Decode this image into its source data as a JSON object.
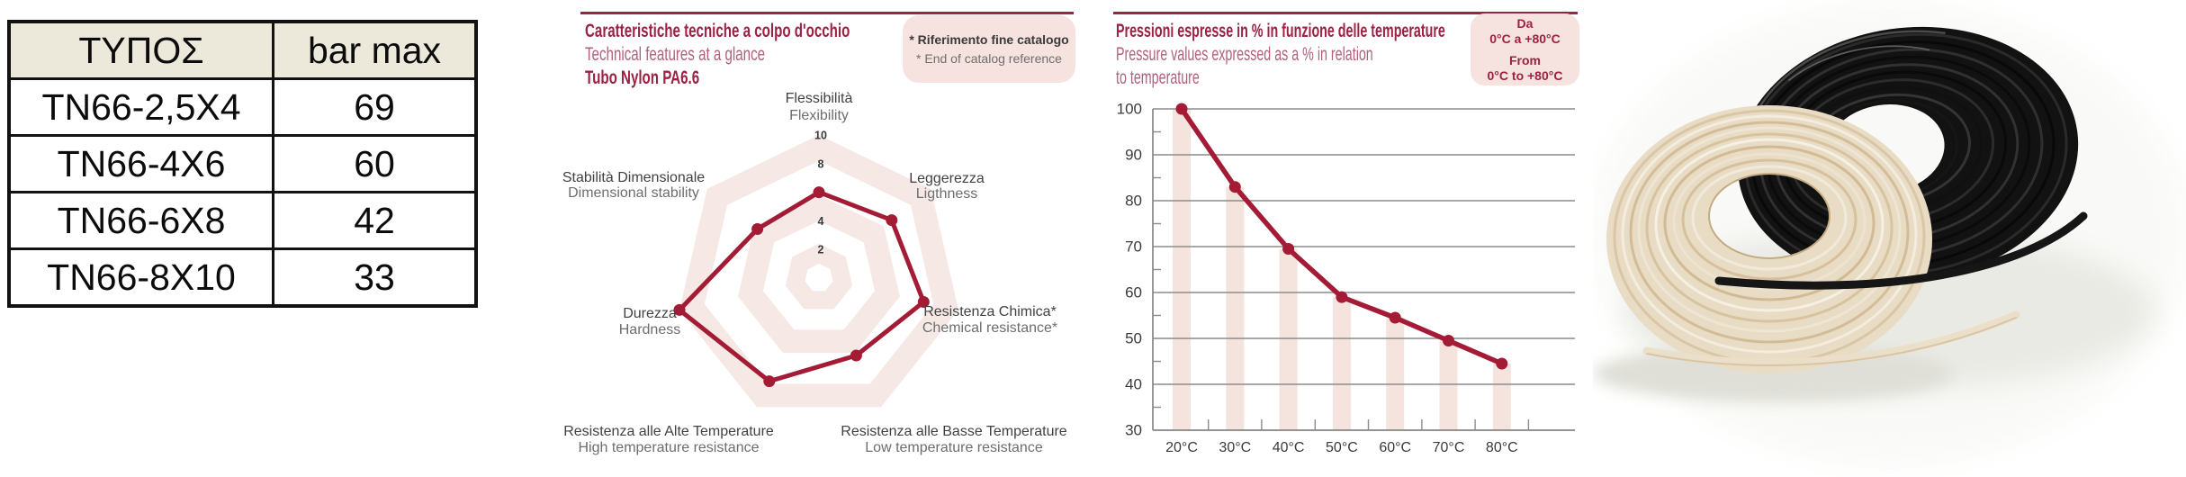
{
  "table": {
    "headers": [
      "ΤΥΠΟΣ",
      "bar max"
    ],
    "rows": [
      [
        "TN66-2,5X4",
        "69"
      ],
      [
        "TN66-4X6",
        "60"
      ],
      [
        "TN66-6X8",
        "42"
      ],
      [
        "TN66-8X10",
        "33"
      ]
    ]
  },
  "chart_data": [
    {
      "type": "radar",
      "title_it": "Caratteristiche tecniche a colpo d'occhio",
      "title_en": "Technical features at a glance",
      "subtitle": "Tubo Nylon PA6.6",
      "note_it": "* Riferimento fine catalogo",
      "note_en": "* End of catalog reference",
      "rmax": 10,
      "rticks": [
        2,
        4,
        6,
        8,
        10
      ],
      "axes": [
        {
          "label_it": "Flessibilità",
          "label_en": "Flexibility",
          "value": 6
        },
        {
          "label_it": "Leggerezza",
          "label_en": "Ligthness",
          "value": 6.5
        },
        {
          "label_it": "Resistenza Chimica*",
          "label_en": "Chemical resistance*",
          "value": 7.5
        },
        {
          "label_it": "Resistenza alle Basse Temperature",
          "label_en": "Low temperature resistance",
          "value": 6
        },
        {
          "label_it": "Resistenza alle Alte Temperature",
          "label_en": "High temperature resistance",
          "value": 8
        },
        {
          "label_it": "Durezza",
          "label_en": "Hardness",
          "value": 10
        },
        {
          "label_it": "Stabilità Dimensionale",
          "label_en": "Dimensional stability",
          "value": 5.5
        }
      ]
    },
    {
      "type": "line",
      "title_it": "Pressioni espresse in % in funzione delle temperature",
      "title_en_line1": "Pressure values expressed as a % in relation",
      "title_en_line2": "to temperature",
      "range_it_1": "Da",
      "range_it_2": "0°C a +80°C",
      "range_en_1": "From",
      "range_en_2": "0°C to +80°C",
      "x_labels": [
        "20°C",
        "30°C",
        "40°C",
        "50°C",
        "60°C",
        "70°C",
        "80°C"
      ],
      "values": [
        100,
        83,
        69.5,
        59,
        54.5,
        49.5,
        44.5
      ],
      "ylim": [
        30,
        100
      ],
      "yticks": [
        30,
        40,
        50,
        60,
        70,
        80,
        90,
        100
      ],
      "grid": "horizontal",
      "legend": "none",
      "bars_behind_points": true
    }
  ],
  "photo": {
    "contents": [
      "black nylon tubing coil",
      "natural nylon tubing coil"
    ]
  },
  "colors": {
    "accent_maroon": "#9c2143",
    "chart_line": "#a41b36",
    "subtitle_mauve": "#b2607a",
    "pink_box": "#f6e2de",
    "radar_band": "#f6e9e5",
    "bar_pink": "#f5e3de",
    "grid_gray": "#8c8c8c",
    "table_header_bg": "#ece8da"
  }
}
